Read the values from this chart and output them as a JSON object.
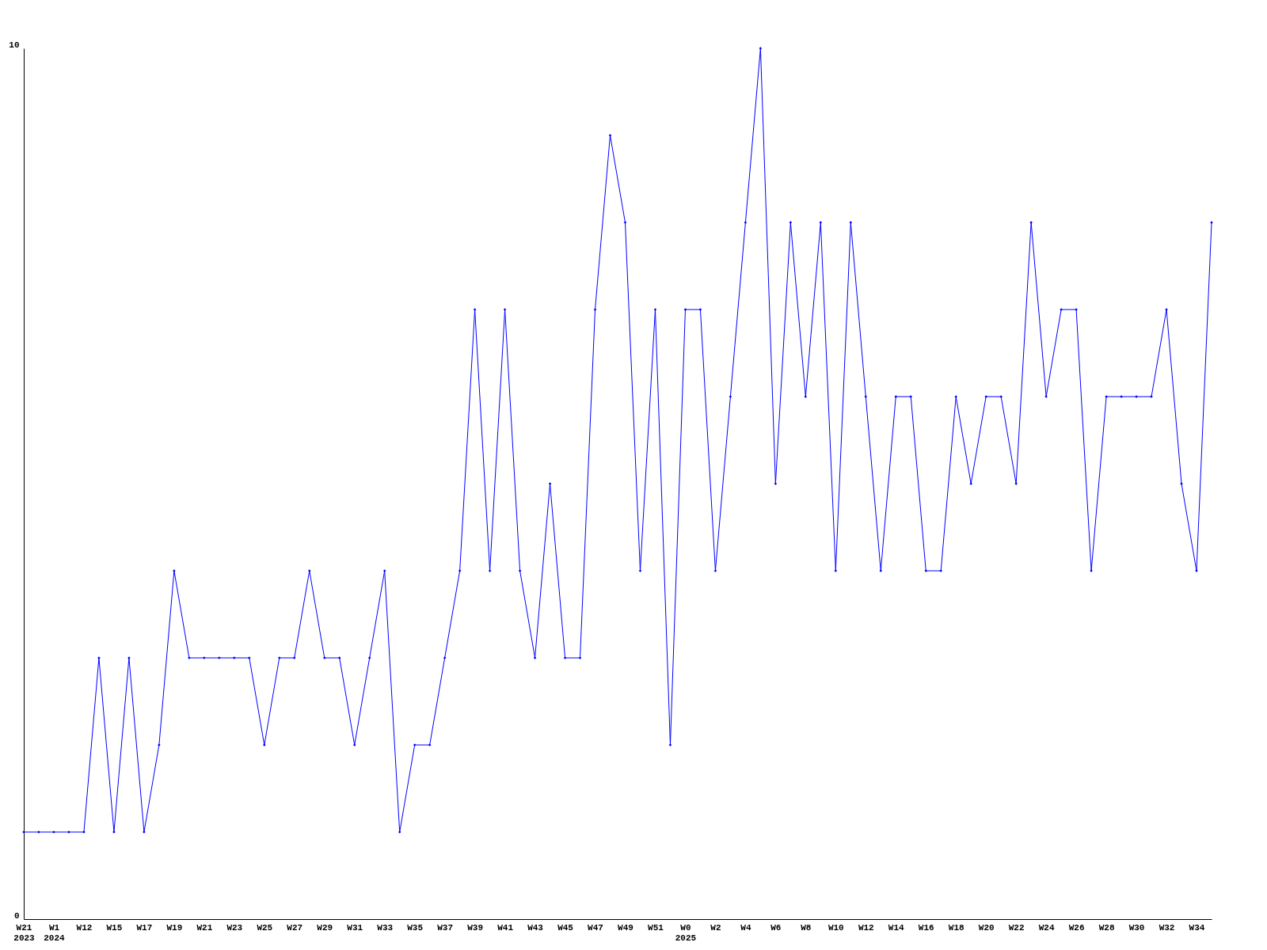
{
  "chart_data": {
    "type": "line",
    "categories": [
      "W21\n2023",
      null,
      "W1\n2024",
      null,
      "W12",
      null,
      "W15",
      null,
      "W17",
      null,
      "W19",
      null,
      "W21",
      null,
      "W23",
      null,
      "W25",
      null,
      "W27",
      null,
      "W29",
      null,
      "W31",
      null,
      "W33",
      null,
      "W35",
      null,
      "W37",
      null,
      "W39",
      null,
      "W41",
      null,
      "W43",
      null,
      "W45",
      null,
      "W47",
      null,
      "W49",
      null,
      "W51",
      null,
      "W0\n2025",
      null,
      "W2",
      null,
      "W4",
      null,
      "W6",
      null,
      "W8",
      null,
      "W10",
      null,
      "W12",
      null,
      "W14",
      null,
      "W16",
      null,
      "W18",
      null,
      "W20",
      null,
      "W22",
      null,
      "W24",
      null,
      "W26",
      null,
      "W28",
      null,
      "W30",
      null,
      "W32",
      null,
      "W34",
      null
    ],
    "series": [
      {
        "color": "#0000ff",
        "values": [
          1,
          1,
          1,
          1,
          1,
          3,
          1,
          3,
          1,
          2,
          4,
          3,
          3,
          3,
          3,
          3,
          2,
          3,
          3,
          4,
          3,
          3,
          2,
          3,
          4,
          1,
          2,
          2,
          3,
          4,
          7,
          4,
          7,
          4,
          3,
          5,
          3,
          3,
          7,
          9,
          8,
          4,
          7,
          2,
          7,
          7,
          4,
          6,
          8,
          10,
          5,
          8,
          6,
          8,
          4,
          8,
          6,
          4,
          6,
          6,
          4,
          4,
          6,
          5,
          6,
          6,
          5,
          8,
          6,
          7,
          7,
          4,
          6,
          6,
          6,
          6,
          7,
          5,
          4,
          8
        ]
      }
    ],
    "ylim": [
      0,
      10
    ],
    "yticks": [
      0,
      10
    ],
    "marker": "diamond",
    "line_style": "solid"
  }
}
